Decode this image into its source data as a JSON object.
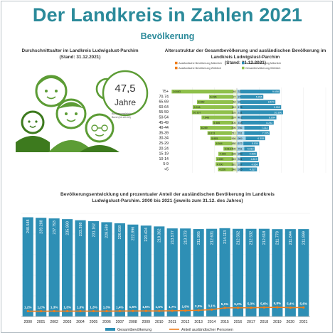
{
  "header": {
    "title": "Der Landkreis in Zahlen 2021",
    "subtitle": "Bevölkerung"
  },
  "avg_age": {
    "title_line1": "Durchschnittsalter im Landkreis Ludwigslust-Parchim",
    "title_line2": "(Stand: 31.12.2021)",
    "value": "47,5",
    "unit": "Jahre",
    "note_line1": "Bundesvergleich:",
    "note_line2": "Bund (44 am 40)",
    "colors": {
      "green": "#5c9c35",
      "dark": "#3d7a1e"
    }
  },
  "chart_data": [
    {
      "type": "bar",
      "orientation": "horizontal",
      "title": "Altersstruktur der Gesamtbevölkerung und ausländischen Bevölkerung im Landkreis Ludwigslust-Parchim",
      "subtitle": "(Stand: 31.12.2021)",
      "legend": [
        {
          "name": "Ausländische Bevölkerung Männlich",
          "color": "#f07f1d"
        },
        {
          "name": "Gesamtbevölkerung Männlich",
          "color": "#2e8fb5"
        },
        {
          "name": "Ausländische Bevölkerung Weiblich",
          "color": "#f07f1d"
        },
        {
          "name": "Gesamtbevölkerung Weiblich",
          "color": "#8fc04b"
        }
      ],
      "legend_placement": "top",
      "categories": [
        "75+",
        "70-74",
        "65-69",
        "60-64",
        "55-59",
        "50-54",
        "45-49",
        "40-44",
        "35-39",
        "30-34",
        "25-29",
        "20-24",
        "15-19",
        "10-14",
        "5-9",
        "<5"
      ],
      "series": [
        {
          "name": "Gesamtbevölkerung Weiblich",
          "side": "left",
          "color": "#8fc04b",
          "values": [
            14663,
            6235,
            8962,
            9916,
            10107,
            7946,
            5486,
            8289,
            6613,
            5955,
            4944,
            3013,
            4158,
            4699,
            4790,
            4226
          ]
        },
        {
          "name": "Ausländische Bevölkerung Weiblich",
          "side": "left",
          "color": "#d9e9b5",
          "values": [
            46,
            27,
            62,
            112,
            135,
            224,
            405,
            396,
            511,
            566,
            480,
            400,
            238,
            349,
            381,
            240
          ]
        },
        {
          "name": "Ausländische Bevölkerung Männlich",
          "side": "right",
          "color": "#9fd0e6",
          "values": [
            32,
            37,
            92,
            175,
            231,
            461,
            458,
            766,
            761,
            909,
            672,
            761,
            360,
            331,
            337,
            365
          ]
        },
        {
          "name": "Gesamtbevölkerung Männlich",
          "side": "right",
          "color": "#2e8fb5",
          "values": [
            9658,
            5955,
            8670,
            9959,
            10390,
            8894,
            8292,
            7212,
            7376,
            6355,
            5030,
            4010,
            4506,
            4819,
            4964,
            4527
          ]
        }
      ],
      "colors": {
        "grid": "#dddddd"
      }
    },
    {
      "type": "bar",
      "title_line1": "Bevölkerungsentwicklung und prozentualer Anteil der ausländischen Bevölkerung im Landkreis",
      "title_line2": "Ludwigslust-Parchim. 2000 bis 2021 (jeweils zum 31.12. des Jahres)",
      "categories": [
        "2000",
        "2001",
        "2002",
        "2003",
        "2004",
        "2005",
        "2006",
        "2007",
        "2008",
        "2009",
        "2010",
        "2011",
        "2012",
        "2013",
        "2014",
        "2015",
        "2016",
        "2017",
        "2018",
        "2019",
        "2020",
        "2021"
      ],
      "series": [
        {
          "name": "Gesamtbevölkerung",
          "type": "bar",
          "color": "#2e8fb5",
          "values": [
            240548,
            239288,
            237793,
            235990,
            233398,
            231162,
            228589,
            226058,
            222896,
            220424,
            218362,
            213577,
            213373,
            211985,
            212631,
            214113,
            212562,
            212532,
            212618,
            211778,
            211844,
            211899
          ],
          "labels": [
            "240.548",
            "239.288",
            "237.793",
            "235.990",
            "233.398",
            "231.162",
            "228.589",
            "226.058",
            "222.896",
            "220.424",
            "218.362",
            "213.577",
            "213.373",
            "211.985",
            "212.631",
            "214.113",
            "212.562",
            "212.532",
            "212.618",
            "211.778",
            "211.844",
            "211.899"
          ]
        },
        {
          "name": "Anteil ausländischer Personen",
          "type": "line",
          "color": "#f07f1d",
          "values": [
            1.2,
            1.2,
            1.3,
            1.3,
            1.3,
            1.3,
            1.3,
            1.4,
            1.5,
            1.5,
            1.5,
            1.7,
            1.9,
            2.3,
            3.1,
            5.1,
            5.2,
            5.3,
            5.6,
            5.8,
            5.4,
            5.6
          ],
          "labels": [
            "1,2%",
            "1,2%",
            "1,3%",
            "1,3%",
            "1,3%",
            "1,3%",
            "1,3%",
            "1,4%",
            "1,5%",
            "1,5%",
            "1,5%",
            "1,7%",
            "1,9%",
            "2,3%",
            "3,1%",
            "5,1%",
            "5,2%",
            "5,3%",
            "5,6%",
            "5,8%",
            "5,4%",
            "5,6%"
          ]
        }
      ],
      "legend_placement": "bottom",
      "colors": {
        "pct_label": "#1f6f93"
      }
    }
  ]
}
